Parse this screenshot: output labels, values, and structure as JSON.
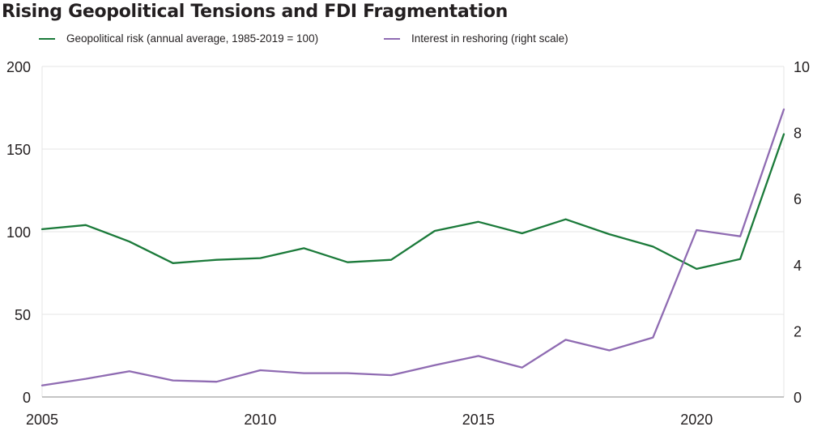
{
  "chart_data": {
    "type": "line",
    "title": "Rising Geopolitical Tensions and FDI Fragmentation",
    "x": [
      2005,
      2006,
      2007,
      2008,
      2009,
      2010,
      2011,
      2012,
      2013,
      2014,
      2015,
      2016,
      2017,
      2018,
      2019,
      2020,
      2021,
      2022
    ],
    "xticks": [
      "2005",
      "2010",
      "2015",
      "2020"
    ],
    "xlim": [
      2005,
      2022
    ],
    "ylim_left": [
      0,
      200
    ],
    "ylim_right": [
      0,
      10
    ],
    "yticks_left": [
      "0",
      "50",
      "100",
      "150",
      "200"
    ],
    "yticks_right": [
      "0",
      "2",
      "4",
      "6",
      "8",
      "10"
    ],
    "grid": "horizontal",
    "legend_position": "top",
    "series": [
      {
        "name": "Geopolitical risk (annual average, 1985-2019 = 100)",
        "axis": "left",
        "color": "#1b7a3a",
        "values": [
          101.5,
          104,
          94,
          81,
          83,
          84,
          90,
          81.5,
          83,
          100.5,
          106,
          99,
          107.5,
          98.5,
          91,
          77.5,
          83.5,
          159
        ]
      },
      {
        "name": "Interest in reshoring (right scale)",
        "axis": "right",
        "color": "#8f6bb2",
        "values": [
          0.35,
          0.55,
          0.78,
          0.5,
          0.46,
          0.81,
          0.72,
          0.72,
          0.66,
          0.96,
          1.24,
          0.89,
          1.73,
          1.41,
          1.8,
          5.05,
          4.86,
          8.7
        ]
      }
    ]
  }
}
